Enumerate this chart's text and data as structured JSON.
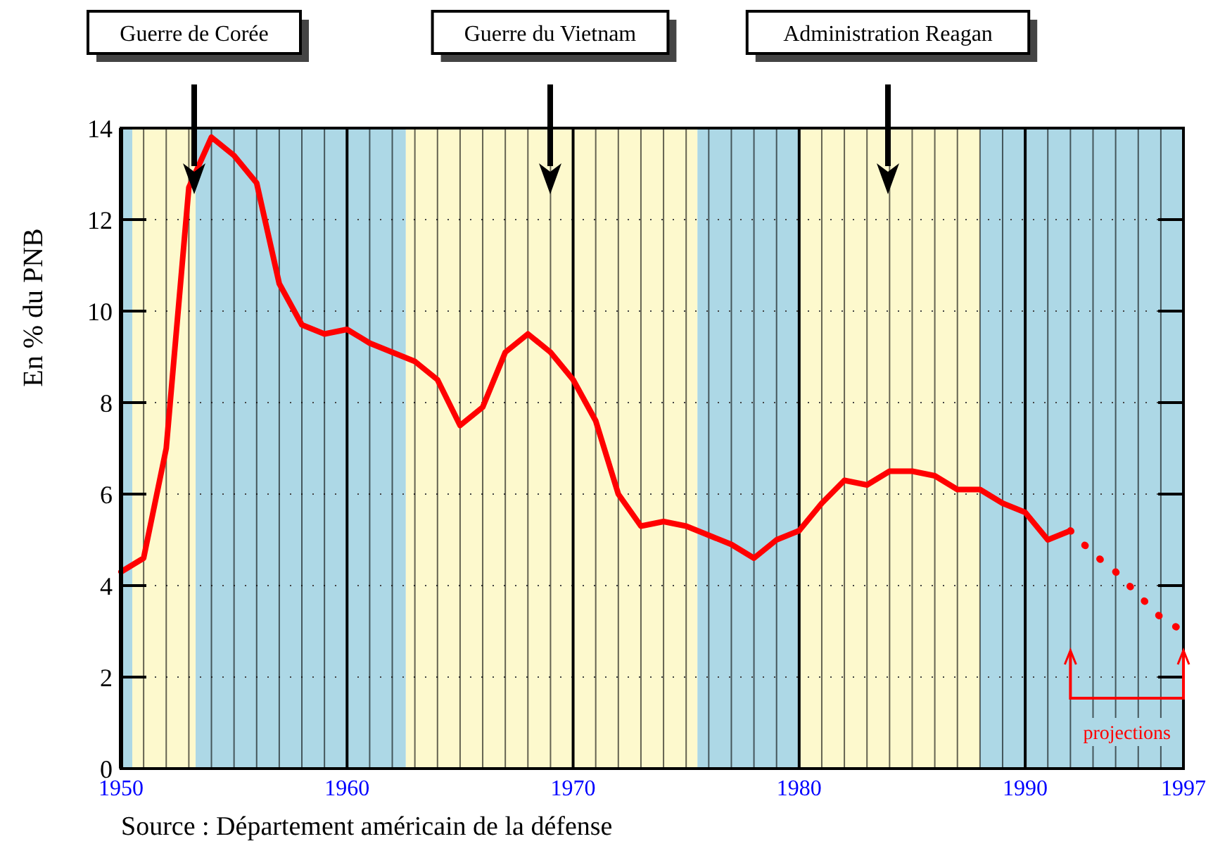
{
  "chart_data": {
    "type": "line",
    "ylabel": "En % du PNB",
    "xlim": [
      1950,
      1997
    ],
    "xticks": [
      1950,
      {
        "value": 1951,
        "label": null
      },
      {
        "value": 1952,
        "label": null
      },
      {
        "value": 1953,
        "label": null
      },
      {
        "value": 1954,
        "label": null
      },
      {
        "value": 1955,
        "label": null
      },
      {
        "value": 1956,
        "label": null
      },
      {
        "value": 1957,
        "label": null
      },
      {
        "value": 1958,
        "label": null
      },
      {
        "value": 1959,
        "label": null
      },
      1960,
      {
        "value": 1961,
        "label": null
      },
      {
        "value": 1962,
        "label": null
      },
      {
        "value": 1963,
        "label": null
      },
      {
        "value": 1964,
        "label": null
      },
      {
        "value": 1965,
        "label": null
      },
      {
        "value": 1966,
        "label": null
      },
      {
        "value": 1967,
        "label": null
      },
      {
        "value": 1968,
        "label": null
      },
      {
        "value": 1969,
        "label": null
      },
      1970,
      {
        "value": 1971,
        "label": null
      },
      {
        "value": 1972,
        "label": null
      },
      {
        "value": 1973,
        "label": null
      },
      {
        "value": 1974,
        "label": null
      },
      {
        "value": 1975,
        "label": null
      },
      {
        "value": 1976,
        "label": null
      },
      {
        "value": 1977,
        "label": null
      },
      {
        "value": 1978,
        "label": null
      },
      {
        "value": 1979,
        "label": null
      },
      1980,
      {
        "value": 1981,
        "label": null
      },
      {
        "value": 1982,
        "label": null
      },
      {
        "value": 1983,
        "label": null
      },
      {
        "value": 1984,
        "label": null
      },
      {
        "value": 1985,
        "label": null
      },
      {
        "value": 1986,
        "label": null
      },
      {
        "value": 1987,
        "label": null
      },
      {
        "value": 1988,
        "label": null
      },
      {
        "value": 1989,
        "label": null
      },
      1990,
      {
        "value": 1991,
        "label": null
      },
      {
        "value": 1992,
        "label": null
      },
      {
        "value": 1993,
        "label": null
      },
      {
        "value": 1994,
        "label": null
      },
      {
        "value": 1995,
        "label": null
      },
      {
        "value": 1996,
        "label": null
      },
      1997
    ],
    "ylim": [
      0,
      14
    ],
    "yticks": [
      0,
      2,
      4,
      6,
      8,
      10,
      12,
      14
    ],
    "grid": true,
    "series": [
      {
        "color": "#ff0000",
        "line_style": "solid",
        "x": [
          1950,
          1951,
          1952,
          1953,
          1954,
          1955,
          1956,
          1957,
          1958,
          1959,
          1960,
          1961,
          1962,
          1963,
          1964,
          1965,
          1966,
          1967,
          1968,
          1969,
          1970,
          1971,
          1972,
          1973,
          1974,
          1975,
          1976,
          1977,
          1978,
          1979,
          1980,
          1981,
          1982,
          1983,
          1984,
          1985,
          1986,
          1987,
          1988,
          1989,
          1990,
          1991,
          1992
        ],
        "values": [
          4.3,
          4.6,
          7.0,
          12.7,
          13.8,
          13.4,
          12.8,
          10.6,
          9.7,
          9.5,
          9.6,
          9.3,
          9.1,
          8.9,
          8.5,
          7.5,
          7.9,
          9.1,
          9.5,
          9.1,
          8.5,
          7.6,
          6.0,
          5.3,
          5.4,
          5.3,
          5.1,
          4.9,
          4.6,
          5.0,
          5.2,
          5.8,
          6.3,
          6.2,
          6.5,
          6.5,
          6.4,
          6.1,
          6.1,
          5.8,
          5.6,
          5.0,
          5.2
        ]
      },
      {
        "color": "#ff0000",
        "line_style": "dotted",
        "x": [
          1992,
          1993,
          1994,
          1995,
          1996,
          1997
        ],
        "values": [
          5.2,
          4.7,
          4.3,
          3.8,
          3.3,
          3.0
        ]
      }
    ],
    "bands": [
      {
        "axis": "x",
        "from": 1950,
        "to": 1950.5,
        "color": "#add8e6"
      },
      {
        "axis": "x",
        "from": 1950.5,
        "to": 1953.3,
        "color": "#fdf9cd"
      },
      {
        "axis": "x",
        "from": 1953.3,
        "to": 1962.6,
        "color": "#add8e6"
      },
      {
        "axis": "x",
        "from": 1962.6,
        "to": 1975.5,
        "color": "#fdf9cd"
      },
      {
        "axis": "x",
        "from": 1975.5,
        "to": 1980,
        "color": "#add8e6"
      },
      {
        "axis": "x",
        "from": 1980,
        "to": 1988,
        "color": "#fdf9cd"
      },
      {
        "axis": "x",
        "from": 1988,
        "to": 1997,
        "color": "#add8e6"
      }
    ],
    "annotations": [
      "Guerre de Corée",
      "Guerre du Vietnam",
      "Administration Reagan",
      "projections",
      "Source : Département américain de la défense"
    ]
  }
}
